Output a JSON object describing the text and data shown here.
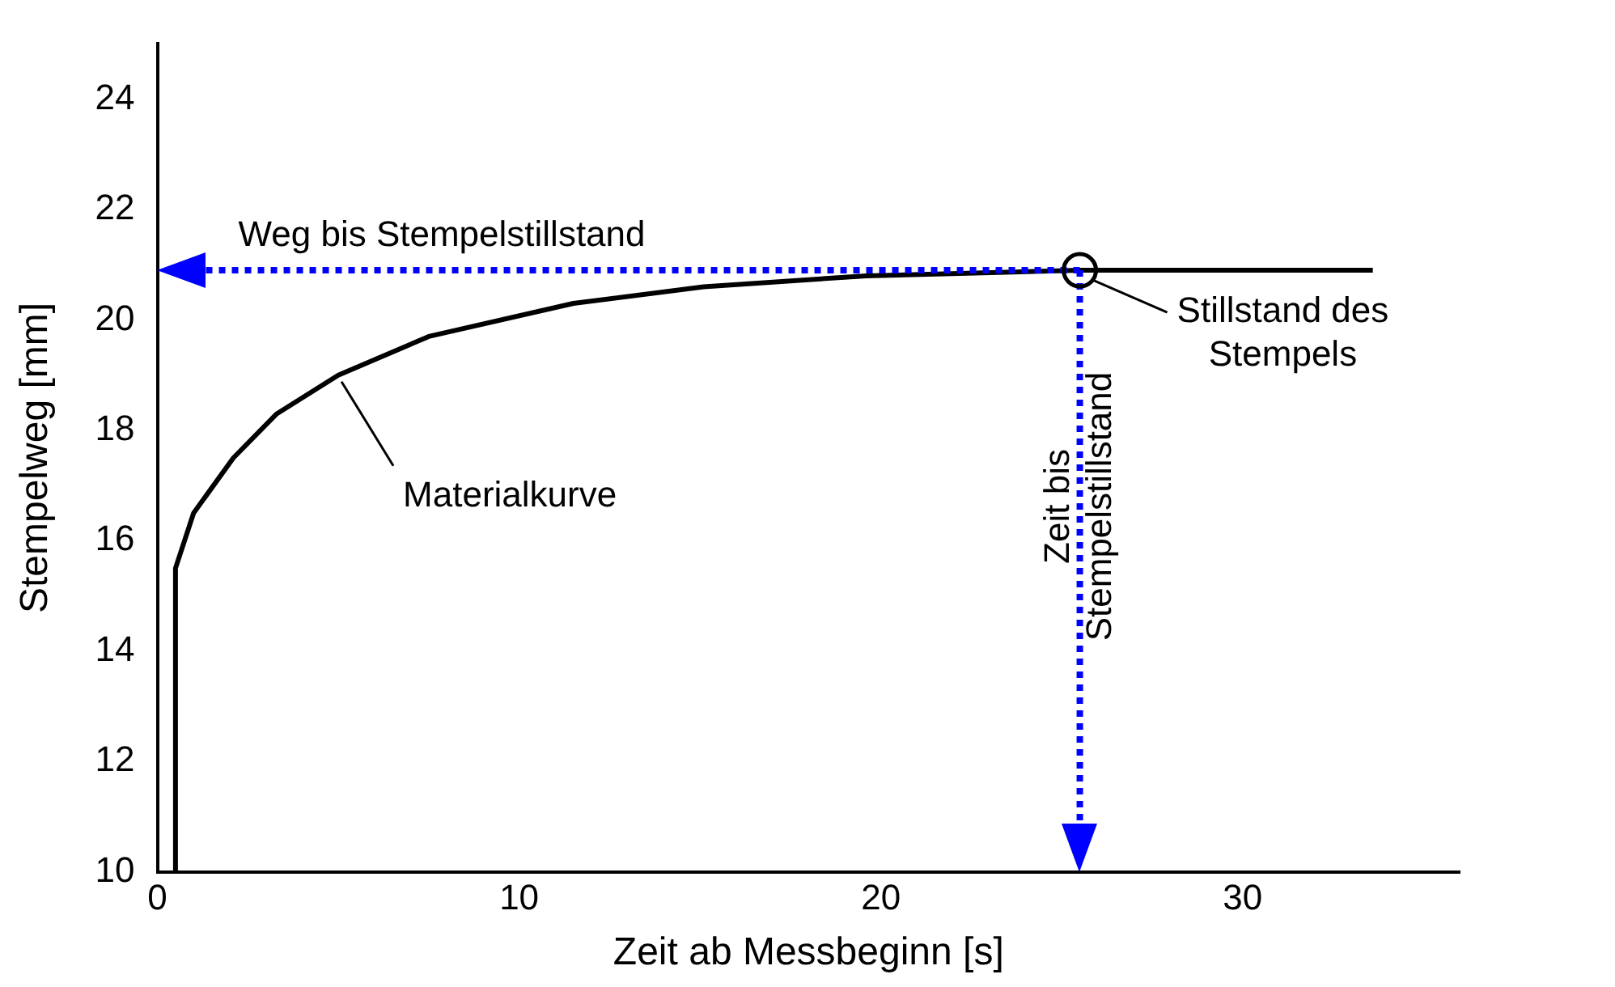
{
  "chart_data": {
    "type": "line",
    "xlabel": "Zeit ab Messbeginn [s]",
    "ylabel": "Stempelweg [mm]",
    "x": [
      0.5,
      0.5,
      1.0,
      2.1,
      3.3,
      5.0,
      7.5,
      11.5,
      15.1,
      19.6,
      25.5,
      33.6
    ],
    "series": [
      {
        "color": "#000000",
        "values": [
          10,
          15.5,
          16.5,
          17.5,
          18.3,
          19.0,
          19.7,
          20.3,
          20.6,
          20.8,
          20.9,
          20.9
        ]
      }
    ],
    "xlim": [
      0,
      36
    ],
    "ylim": [
      10,
      25
    ],
    "xticks": [
      0,
      10,
      20,
      30
    ],
    "yticks": [
      10,
      12,
      14,
      16,
      18,
      20,
      22,
      24
    ],
    "grid": false,
    "legend": false,
    "marker": "none",
    "line_style": "solid",
    "ref_lines": [
      {
        "axis": "y",
        "value": 20.9,
        "label": "Weg bis Stempelstillstand",
        "color": "#0000ff",
        "line_style": "dotted"
      },
      {
        "axis": "x",
        "value": 25.5,
        "label": "Zeit bis Stempelstillstand",
        "color": "#0000ff",
        "line_style": "dotted"
      }
    ],
    "annotations": [
      {
        "text": "Materialkurve",
        "x": 5.0,
        "y": 19.0
      },
      {
        "text": "Stillstand des Stempels",
        "x": 25.5,
        "y": 20.9
      }
    ]
  }
}
